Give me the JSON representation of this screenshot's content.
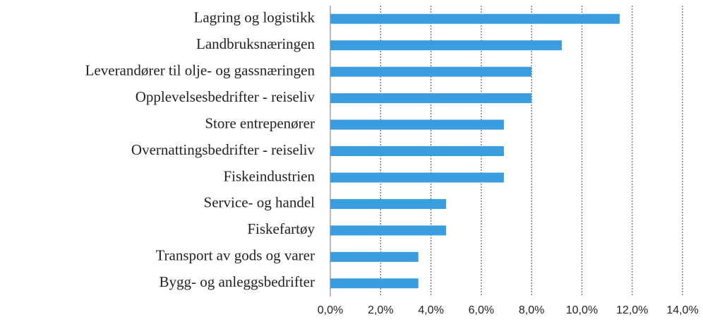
{
  "chart_data": {
    "type": "bar",
    "orientation": "horizontal",
    "categories": [
      "Lagring og logistikk",
      "Landbruksnæringen",
      "Leverandører til olje- og gassnæringen",
      "Opplevelsesbedrifter - reiseliv",
      "Store entrepenører",
      "Overnattingsbedrifter - reiseliv",
      "Fiskeindustrien",
      "Service- og handel",
      "Fiskefartøy",
      "Transport av gods og varer",
      "Bygg- og anleggsbedrifter"
    ],
    "values": [
      11.5,
      9.2,
      8.0,
      8.0,
      6.9,
      6.9,
      6.9,
      4.6,
      4.6,
      3.5,
      3.5
    ],
    "color": "#3a9de0",
    "xlim": [
      0,
      14
    ],
    "xticks": [
      {
        "value": 0,
        "label": "0,0%"
      },
      {
        "value": 2,
        "label": "2,0%"
      },
      {
        "value": 4,
        "label": "4,0%"
      },
      {
        "value": 6,
        "label": "6,0%"
      },
      {
        "value": 8,
        "label": "8,0%"
      },
      {
        "value": 10,
        "label": "10,0%"
      },
      {
        "value": 12,
        "label": "12,0%"
      },
      {
        "value": 14,
        "label": "14,0%"
      }
    ],
    "grid": true
  }
}
